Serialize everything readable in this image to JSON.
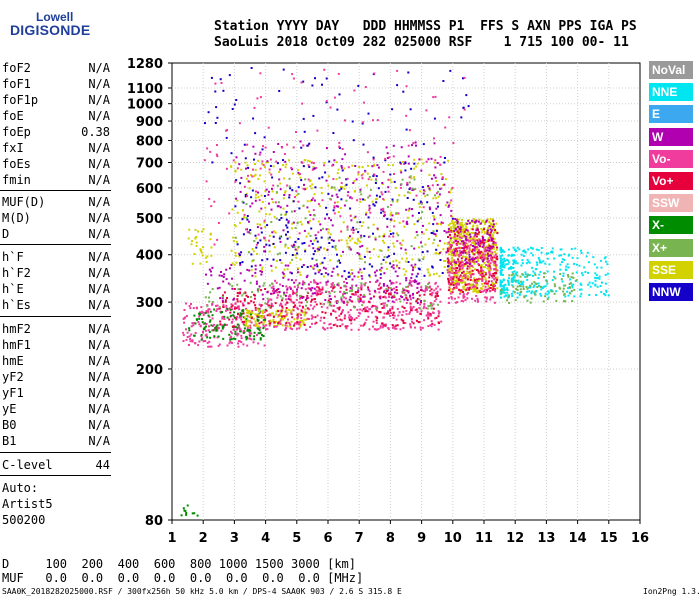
{
  "logo": {
    "line1": "Lowell",
    "line2": "DIGISONDE"
  },
  "header": {
    "row1": "Station YYYY DAY   DDD HHMMSS P1  FFS S AXN PPS IGA PS",
    "row2": "SaoLuis 2018 Oct09 282 025000 RSF    1 715 100 00- 11"
  },
  "params": [
    {
      "name": "foF2",
      "value": "N/A"
    },
    {
      "name": "foF1",
      "value": "N/A"
    },
    {
      "name": "foF1p",
      "value": "N/A"
    },
    {
      "name": "foE",
      "value": "N/A"
    },
    {
      "name": "foEp",
      "value": "0.38"
    },
    {
      "name": "fxI",
      "value": "N/A"
    },
    {
      "name": "foEs",
      "value": "N/A"
    },
    {
      "name": "fmin",
      "value": "N/A"
    },
    {
      "name": "MUF(D)",
      "value": "N/A"
    },
    {
      "name": "M(D)",
      "value": "N/A"
    },
    {
      "name": "D",
      "value": "N/A"
    },
    {
      "name": "h`F",
      "value": "N/A"
    },
    {
      "name": "h`F2",
      "value": "N/A"
    },
    {
      "name": "h`E",
      "value": "N/A"
    },
    {
      "name": "h`Es",
      "value": "N/A"
    },
    {
      "name": "hmF2",
      "value": "N/A"
    },
    {
      "name": "hmF1",
      "value": "N/A"
    },
    {
      "name": "hmE",
      "value": "N/A"
    },
    {
      "name": "yF2",
      "value": "N/A"
    },
    {
      "name": "yF1",
      "value": "N/A"
    },
    {
      "name": "yE",
      "value": "N/A"
    },
    {
      "name": "B0",
      "value": "N/A"
    },
    {
      "name": "B1",
      "value": "N/A"
    },
    {
      "name": "C-level",
      "value": "44"
    }
  ],
  "notes": {
    "auto": "Auto:",
    "artist": "Artist5",
    "code": "500200"
  },
  "footer": {
    "d_row": "D     100  200  400  600  800 1000 1500 3000 [km]",
    "muf_row": "MUF   0.0  0.0  0.0  0.0  0.0  0.0  0.0  0.0 [MHz]",
    "credit": "SAA0K_2018282025000.RSF / 300fx256h 50 kHz 5.0 km / DPS-4 SAA0K 903 / 2.6 S 315.8 E",
    "version": "Ion2Png 1.3.17"
  },
  "legend": [
    {
      "label": "NoVal",
      "color": "#9a9a9a"
    },
    {
      "label": "NNE",
      "color": "#00e6f0"
    },
    {
      "label": "E",
      "color": "#3ca8f0"
    },
    {
      "label": "W",
      "color": "#b000b0"
    },
    {
      "label": "Vo-",
      "color": "#f03c9c"
    },
    {
      "label": "Vo+",
      "color": "#e6003c"
    },
    {
      "label": "SSW",
      "color": "#f0b4b4"
    },
    {
      "label": "X-",
      "color": "#008c00"
    },
    {
      "label": "X+",
      "color": "#78b450"
    },
    {
      "label": "SSE",
      "color": "#d2d200"
    },
    {
      "label": "NNW",
      "color": "#1400c8"
    }
  ],
  "chart_data": {
    "type": "scatter",
    "xlim": [
      1,
      16
    ],
    "ylim": [
      80,
      1280
    ],
    "y_scale": "log",
    "grid": true,
    "x_ticks": [
      1,
      2,
      3,
      4,
      5,
      6,
      7,
      8,
      9,
      10,
      11,
      12,
      13,
      14,
      15,
      16
    ],
    "y_ticks": [
      80,
      200,
      300,
      400,
      500,
      600,
      700,
      800,
      900,
      1000,
      1100,
      1280
    ],
    "clusters": [
      {
        "direction": "Vo-",
        "freq": [
          1.3,
          4.0
        ],
        "height": [
          230,
          300
        ],
        "n": 220,
        "x_weight": "uniform"
      },
      {
        "direction": "X-",
        "freq": [
          1.5,
          4.0
        ],
        "height": [
          240,
          290
        ],
        "n": 120,
        "x_weight": "uniform"
      },
      {
        "direction": "SSE",
        "freq": [
          3.3,
          5.3
        ],
        "height": [
          260,
          290
        ],
        "n": 130,
        "x_weight": "uniform"
      },
      {
        "direction": "Vo-",
        "freq": [
          4.0,
          9.6
        ],
        "height": [
          255,
          345
        ],
        "n": 450,
        "x_weight": "uniform"
      },
      {
        "direction": "Vo+",
        "freq": [
          2.5,
          9.6
        ],
        "height": [
          260,
          330
        ],
        "n": 220,
        "x_weight": "uniform"
      },
      {
        "direction": "W",
        "freq": [
          2.0,
          9.0
        ],
        "height": [
          300,
          380
        ],
        "n": 200,
        "x_weight": "uniform"
      },
      {
        "direction": "X+",
        "freq": [
          2.0,
          9.5
        ],
        "height": [
          290,
          340
        ],
        "n": 90,
        "x_weight": "uniform"
      },
      {
        "direction": "SSE",
        "freq": [
          9.8,
          11.4
        ],
        "height": [
          320,
          500
        ],
        "n": 500,
        "x_weight": "uniform"
      },
      {
        "direction": "Vo+",
        "freq": [
          9.8,
          11.4
        ],
        "height": [
          320,
          470
        ],
        "n": 220,
        "x_weight": "uniform"
      },
      {
        "direction": "Vo-",
        "freq": [
          9.8,
          11.4
        ],
        "height": [
          300,
          450
        ],
        "n": 220,
        "x_weight": "uniform"
      },
      {
        "direction": "W",
        "freq": [
          10.0,
          11.3
        ],
        "height": [
          380,
          500
        ],
        "n": 90,
        "x_weight": "uniform"
      },
      {
        "direction": "NNE",
        "freq": [
          11.5,
          15.0
        ],
        "height": [
          310,
          420
        ],
        "n": 360,
        "x_weight": "decreasing"
      },
      {
        "direction": "X+",
        "freq": [
          11.5,
          14.0
        ],
        "height": [
          300,
          360
        ],
        "n": 80,
        "x_weight": "uniform"
      },
      {
        "direction": "SSE",
        "freq": [
          2.8,
          10.0
        ],
        "height": [
          350,
          720
        ],
        "n": 360,
        "x_weight": "uniform"
      },
      {
        "direction": "NNW",
        "freq": [
          3.0,
          10.0
        ],
        "height": [
          350,
          720
        ],
        "n": 200,
        "x_weight": "uniform"
      },
      {
        "direction": "W",
        "freq": [
          3.0,
          10.0
        ],
        "height": [
          400,
          800
        ],
        "n": 200,
        "x_weight": "uniform"
      },
      {
        "direction": "Vo-",
        "freq": [
          2.0,
          10.0
        ],
        "height": [
          420,
          800
        ],
        "n": 160,
        "x_weight": "uniform"
      },
      {
        "direction": "X+",
        "freq": [
          3.0,
          9.5
        ],
        "height": [
          380,
          650
        ],
        "n": 90,
        "x_weight": "uniform"
      },
      {
        "direction": "NNW",
        "freq": [
          2.0,
          10.5
        ],
        "height": [
          700,
          1250
        ],
        "n": 70,
        "x_weight": "uniform"
      },
      {
        "direction": "Vo-",
        "freq": [
          2.0,
          10.5
        ],
        "height": [
          700,
          1250
        ],
        "n": 45,
        "x_weight": "uniform"
      },
      {
        "direction": "SSE",
        "freq": [
          1.5,
          2.3
        ],
        "height": [
          380,
          470
        ],
        "n": 30,
        "x_weight": "uniform"
      },
      {
        "direction": "X-",
        "freq": [
          1.2,
          1.8
        ],
        "height": [
          82,
          88
        ],
        "n": 10,
        "x_weight": "uniform"
      }
    ]
  }
}
